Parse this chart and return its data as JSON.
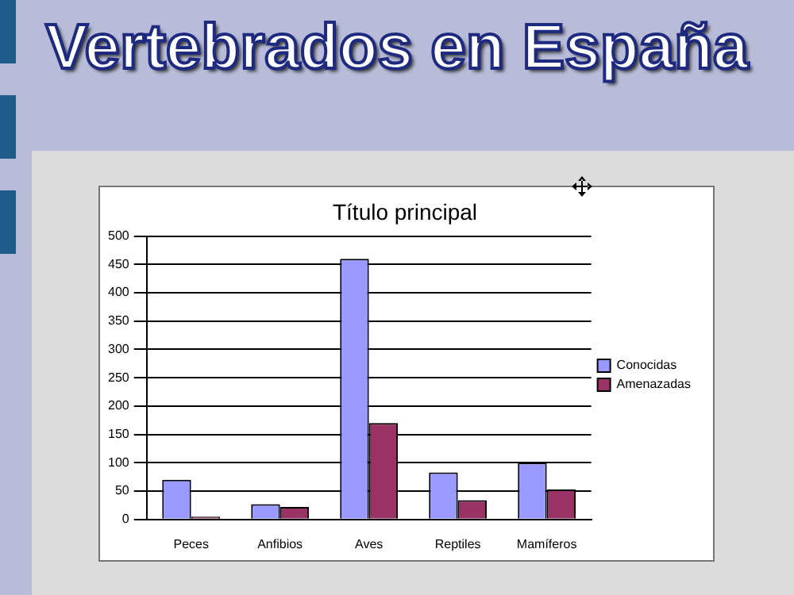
{
  "chart_data": {
    "type": "bar",
    "title": "Vertebrados en España",
    "subtitle": "Título principal",
    "categories": [
      "Peces",
      "Anfibios",
      "Aves",
      "Reptiles",
      "Mamíferos"
    ],
    "series": [
      {
        "name": "Conocidas",
        "color": "#9999ff",
        "values": [
          70,
          27,
          460,
          83,
          100
        ]
      },
      {
        "name": "Amenazadas",
        "color": "#993366",
        "values": [
          5,
          22,
          170,
          34,
          53
        ]
      }
    ],
    "ylim": [
      0,
      500
    ],
    "yticks": [
      0,
      50,
      100,
      150,
      200,
      250,
      300,
      350,
      400,
      450,
      500
    ],
    "grid": "y",
    "legend": "right"
  }
}
